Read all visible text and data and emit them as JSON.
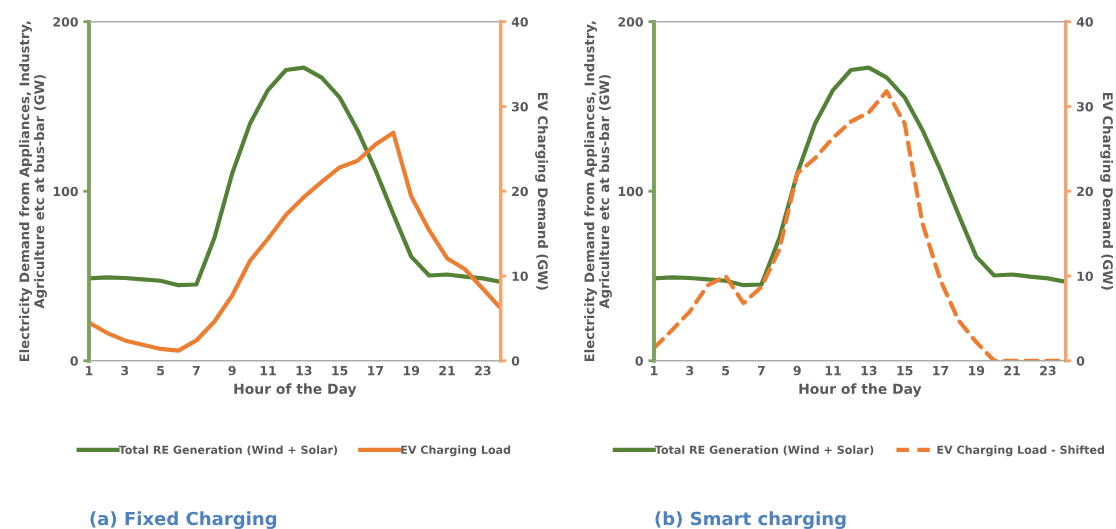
{
  "chart_data": [
    {
      "type": "line",
      "xlabel": "Hour of the Day",
      "ylabel": "Electricity Demand from Appliances, Industry, Agriculture etc at bus-bar (GW)",
      "y2label": "EV Charging Demand (GW)",
      "x": [
        1,
        2,
        3,
        4,
        5,
        6,
        7,
        8,
        9,
        10,
        11,
        12,
        13,
        14,
        15,
        16,
        17,
        18,
        19,
        20,
        21,
        22,
        23,
        24
      ],
      "xlim": [
        1,
        24
      ],
      "xticks": [
        1,
        3,
        5,
        7,
        9,
        11,
        13,
        15,
        17,
        19,
        21,
        23
      ],
      "ylim": [
        0,
        200
      ],
      "yticks": [
        0,
        100,
        200
      ],
      "y2lim": [
        0,
        40
      ],
      "y2ticks": [
        0,
        10,
        20,
        30,
        40
      ],
      "series": [
        {
          "name": "Total RE Generation (Wind + Solar)",
          "color": "#538135",
          "line_style": "solid",
          "values": [
            48.6,
            49.2,
            48.8,
            48,
            47.2,
            44.6,
            45,
            72.2,
            110.5,
            140,
            159.7,
            171.5,
            172.9,
            167,
            155.4,
            136,
            112.5,
            86.5,
            61.4,
            50.3,
            50.9,
            49.6,
            48.6,
            46.6
          ]
        },
        {
          "name": "EV Charging Load",
          "color": "#ed7d31",
          "axis": "y2",
          "line_style": "solid",
          "values": [
            4.5,
            3.3,
            2.4,
            1.9,
            1.4,
            1.2,
            2.4,
            4.6,
            7.7,
            11.8,
            14.4,
            17.2,
            19.3,
            21.1,
            22.8,
            23.6,
            25.5,
            26.9,
            19.4,
            15.4,
            12.1,
            10.8,
            8.5,
            6.2
          ]
        }
      ],
      "legend": "bottom",
      "grid": false,
      "marker": "none",
      "annotations": [
        "(a) Fixed Charging"
      ]
    },
    {
      "type": "line",
      "xlabel": "Hour of the Day",
      "ylabel": "Electricity Demand from Appliances, Industry, Agriculture etc at bus-bar (GW)",
      "y2label": "EV Charging Demand (GW)",
      "x": [
        1,
        2,
        3,
        4,
        5,
        6,
        7,
        8,
        9,
        10,
        11,
        12,
        13,
        14,
        15,
        16,
        17,
        18,
        19,
        20,
        21,
        22,
        23,
        24
      ],
      "xlim": [
        1,
        24
      ],
      "xticks": [
        1,
        3,
        5,
        7,
        9,
        11,
        13,
        15,
        17,
        19,
        21,
        23
      ],
      "ylim": [
        0,
        200
      ],
      "yticks": [
        0,
        100,
        200
      ],
      "y2lim": [
        0,
        40
      ],
      "y2ticks": [
        0,
        10,
        20,
        30,
        40
      ],
      "series": [
        {
          "name": "Total RE Generation (Wind + Solar)",
          "color": "#538135",
          "line_style": "solid",
          "values": [
            48.6,
            49.2,
            48.8,
            48,
            47.2,
            44.6,
            45,
            72.2,
            110.5,
            140,
            159.7,
            171.5,
            172.9,
            167,
            155.4,
            136,
            112.5,
            86.5,
            61.4,
            50.3,
            50.9,
            49.6,
            48.6,
            46.6
          ]
        },
        {
          "name": "EV Charging Load - Shifted",
          "color": "#ed7d31",
          "axis": "y2",
          "line_style": "dashed",
          "values": [
            1.5,
            3.6,
            5.8,
            8.9,
            10,
            6.8,
            8.7,
            13.1,
            22.1,
            23.9,
            26.3,
            28.2,
            29.3,
            31.8,
            28,
            16.2,
            9.5,
            4.8,
            2.2,
            0,
            0,
            0,
            0,
            0
          ]
        }
      ],
      "legend": "bottom",
      "grid": false,
      "marker": "none",
      "annotations": [
        "(b) Smart charging"
      ]
    }
  ]
}
